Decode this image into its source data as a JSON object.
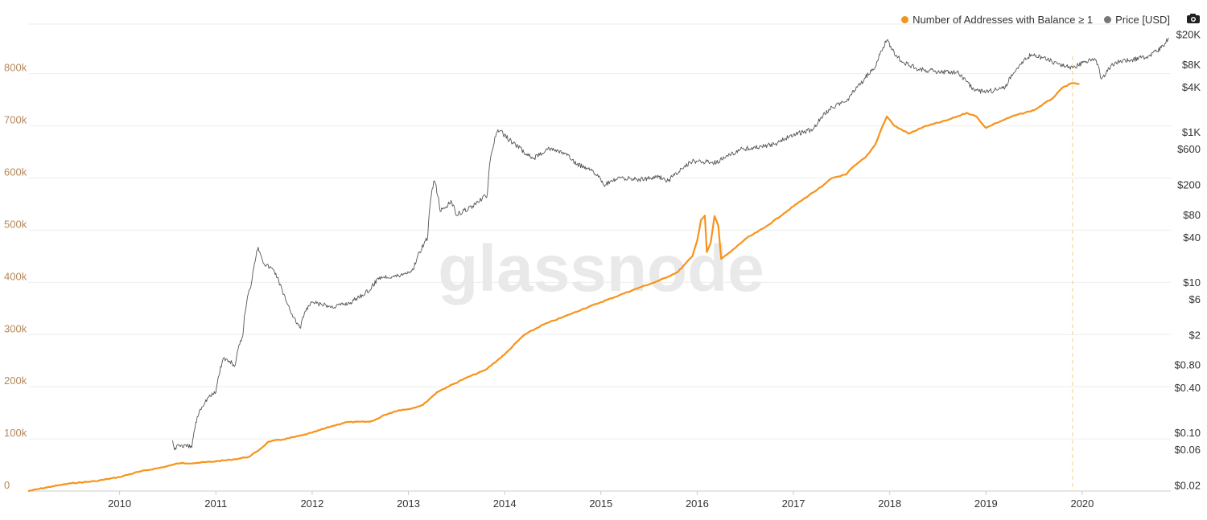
{
  "watermark": "glassnode",
  "legend": {
    "addresses_label": "Number of Addresses with Balance ≥ 1",
    "price_label": "Price [USD]"
  },
  "colors": {
    "addresses": "#f7931a",
    "price": "#555555",
    "left_axis_text": "#b5885a",
    "right_axis_text": "#333333",
    "grid": "#eeeeee",
    "marker": "#f5d08a"
  },
  "toolbar": {
    "camera_icon": "camera-icon"
  },
  "chart_data": {
    "type": "line",
    "x_ticks": [
      "2010",
      "2011",
      "2012",
      "2013",
      "2014",
      "2015",
      "2016",
      "2017",
      "2018",
      "2019",
      "2020"
    ],
    "x_range": [
      2009.05,
      2020.92
    ],
    "y_left": {
      "ticks": [
        0,
        100000,
        200000,
        300000,
        400000,
        500000,
        600000,
        700000,
        800000
      ],
      "tick_labels": [
        "0",
        "100k",
        "200k",
        "300k",
        "400k",
        "500k",
        "600k",
        "700k",
        "800k"
      ],
      "range": [
        0,
        895000
      ]
    },
    "y_right": {
      "scale": "log",
      "ticks": [
        0.02,
        0.06,
        0.1,
        0.4,
        0.8,
        2,
        6,
        10,
        40,
        80,
        200,
        600,
        1000,
        4000,
        8000,
        20000
      ],
      "tick_labels": [
        "$0.02",
        "$0.06",
        "$0.10",
        "$0.40",
        "$0.80",
        "$2",
        "$6",
        "$10",
        "$40",
        "$80",
        "$200",
        "$600",
        "$1K",
        "$4K",
        "$8K",
        "$20K"
      ],
      "range": [
        0.017,
        28000
      ]
    },
    "marker_x": 2019.9,
    "series": [
      {
        "name": "Number of Addresses with Balance ≥ 1",
        "axis": "left",
        "points": [
          [
            2009.05,
            0
          ],
          [
            2009.3,
            9000
          ],
          [
            2009.5,
            15000
          ],
          [
            2009.75,
            19000
          ],
          [
            2010.0,
            27000
          ],
          [
            2010.2,
            37000
          ],
          [
            2010.4,
            44000
          ],
          [
            2010.55,
            50000
          ],
          [
            2010.6,
            53000
          ],
          [
            2010.8,
            54000
          ],
          [
            2011.0,
            57000
          ],
          [
            2011.2,
            61000
          ],
          [
            2011.35,
            66000
          ],
          [
            2011.45,
            79000
          ],
          [
            2011.55,
            95000
          ],
          [
            2011.7,
            99000
          ],
          [
            2011.9,
            107000
          ],
          [
            2012.0,
            112000
          ],
          [
            2012.2,
            124000
          ],
          [
            2012.35,
            132000
          ],
          [
            2012.6,
            133000
          ],
          [
            2012.7,
            140000
          ],
          [
            2012.75,
            146000
          ],
          [
            2012.9,
            155000
          ],
          [
            2013.0,
            157000
          ],
          [
            2013.15,
            165000
          ],
          [
            2013.3,
            190000
          ],
          [
            2013.4,
            199000
          ],
          [
            2013.6,
            217000
          ],
          [
            2013.8,
            232000
          ],
          [
            2014.0,
            262000
          ],
          [
            2014.2,
            299000
          ],
          [
            2014.4,
            319000
          ],
          [
            2014.6,
            333000
          ],
          [
            2014.8,
            348000
          ],
          [
            2015.0,
            362000
          ],
          [
            2015.2,
            376000
          ],
          [
            2015.4,
            390000
          ],
          [
            2015.6,
            403000
          ],
          [
            2015.8,
            420000
          ],
          [
            2015.95,
            450000
          ],
          [
            2016.0,
            480000
          ],
          [
            2016.04,
            520000
          ],
          [
            2016.08,
            528000
          ],
          [
            2016.1,
            458000
          ],
          [
            2016.14,
            476000
          ],
          [
            2016.18,
            527000
          ],
          [
            2016.22,
            508000
          ],
          [
            2016.25,
            445000
          ],
          [
            2016.35,
            459000
          ],
          [
            2016.5,
            483000
          ],
          [
            2016.7,
            505000
          ],
          [
            2016.9,
            532000
          ],
          [
            2017.0,
            546000
          ],
          [
            2017.2,
            572000
          ],
          [
            2017.3,
            584000
          ],
          [
            2017.4,
            600000
          ],
          [
            2017.55,
            607000
          ],
          [
            2017.6,
            618000
          ],
          [
            2017.75,
            640000
          ],
          [
            2017.85,
            664000
          ],
          [
            2017.92,
            697000
          ],
          [
            2017.97,
            718000
          ],
          [
            2018.05,
            700000
          ],
          [
            2018.2,
            685000
          ],
          [
            2018.35,
            698000
          ],
          [
            2018.6,
            711000
          ],
          [
            2018.8,
            725000
          ],
          [
            2018.9,
            718000
          ],
          [
            2019.0,
            696000
          ],
          [
            2019.1,
            705000
          ],
          [
            2019.3,
            720000
          ],
          [
            2019.5,
            730000
          ],
          [
            2019.7,
            754000
          ],
          [
            2019.8,
            774000
          ],
          [
            2019.9,
            782000
          ],
          [
            2019.97,
            780000
          ]
        ]
      },
      {
        "name": "Price [USD]",
        "axis": "right",
        "points": [
          [
            2010.55,
            0.08
          ],
          [
            2010.57,
            0.06
          ],
          [
            2010.6,
            0.07
          ],
          [
            2010.75,
            0.065
          ],
          [
            2010.83,
            0.2
          ],
          [
            2010.92,
            0.3
          ],
          [
            2011.0,
            0.35
          ],
          [
            2011.08,
            1.0
          ],
          [
            2011.2,
            0.8
          ],
          [
            2011.28,
            2.0
          ],
          [
            2011.37,
            10.0
          ],
          [
            2011.44,
            30.0
          ],
          [
            2011.5,
            18.0
          ],
          [
            2011.6,
            15.0
          ],
          [
            2011.7,
            7.0
          ],
          [
            2011.8,
            3.5
          ],
          [
            2011.88,
            2.5
          ],
          [
            2011.92,
            4.0
          ],
          [
            2012.0,
            5.5
          ],
          [
            2012.2,
            4.8
          ],
          [
            2012.4,
            5.5
          ],
          [
            2012.6,
            8.0
          ],
          [
            2012.7,
            12.0
          ],
          [
            2012.9,
            12.5
          ],
          [
            2013.05,
            15.0
          ],
          [
            2013.2,
            40.0
          ],
          [
            2013.27,
            230.0
          ],
          [
            2013.33,
            90.0
          ],
          [
            2013.45,
            120.0
          ],
          [
            2013.5,
            80.0
          ],
          [
            2013.7,
            110.0
          ],
          [
            2013.82,
            150.0
          ],
          [
            2013.93,
            1100.0
          ],
          [
            2014.05,
            800.0
          ],
          [
            2014.2,
            550.0
          ],
          [
            2014.3,
            450.0
          ],
          [
            2014.45,
            620.0
          ],
          [
            2014.6,
            550.0
          ],
          [
            2014.75,
            380.0
          ],
          [
            2014.9,
            330.0
          ],
          [
            2015.03,
            200.0
          ],
          [
            2015.2,
            250.0
          ],
          [
            2015.4,
            240.0
          ],
          [
            2015.6,
            260.0
          ],
          [
            2015.7,
            230.0
          ],
          [
            2015.85,
            330.0
          ],
          [
            2015.95,
            420.0
          ],
          [
            2016.2,
            400.0
          ],
          [
            2016.45,
            600.0
          ],
          [
            2016.6,
            640.0
          ],
          [
            2016.8,
            700.0
          ],
          [
            2017.0,
            950.0
          ],
          [
            2017.2,
            1100.0
          ],
          [
            2017.4,
            2200.0
          ],
          [
            2017.55,
            2600.0
          ],
          [
            2017.7,
            4500.0
          ],
          [
            2017.85,
            7500.0
          ],
          [
            2017.97,
            17000.0
          ],
          [
            2018.05,
            11000.0
          ],
          [
            2018.15,
            8500.0
          ],
          [
            2018.3,
            7000.0
          ],
          [
            2018.5,
            6500.0
          ],
          [
            2018.7,
            6400.0
          ],
          [
            2018.88,
            3600.0
          ],
          [
            2019.0,
            3500.0
          ],
          [
            2019.2,
            4000.0
          ],
          [
            2019.35,
            8000.0
          ],
          [
            2019.47,
            11000.0
          ],
          [
            2019.6,
            10000.0
          ],
          [
            2019.75,
            8200.0
          ],
          [
            2019.9,
            7300.0
          ],
          [
            2020.0,
            8500.0
          ],
          [
            2020.13,
            9800.0
          ],
          [
            2020.2,
            5200.0
          ],
          [
            2020.35,
            8800.0
          ],
          [
            2020.5,
            9200.0
          ],
          [
            2020.7,
            10600.0
          ],
          [
            2020.82,
            13500.0
          ],
          [
            2020.9,
            18000.0
          ]
        ]
      }
    ]
  }
}
